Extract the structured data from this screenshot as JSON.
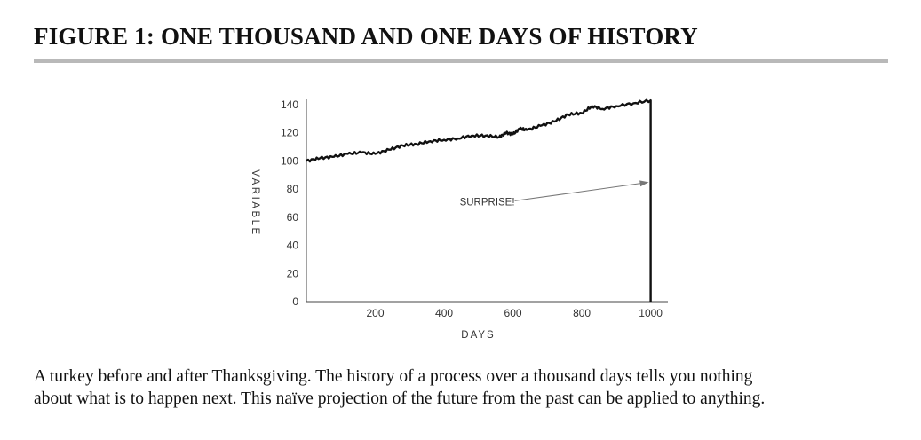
{
  "figure_title": "FIGURE 1: ONE THOUSAND AND ONE DAYS OF HISTORY",
  "caption_lines": [
    "A turkey before and after Thanksgiving. The history of a process over a thousand days tells you nothing",
    "about what is to happen next. This naïve projection of the future from the past can be applied to anything."
  ],
  "chart_data": {
    "type": "line",
    "xlabel": "DAYS",
    "ylabel": "VARIABLE",
    "xlim": [
      0,
      1050
    ],
    "ylim": [
      0,
      140
    ],
    "x_ticks": [
      200,
      400,
      600,
      800,
      1000
    ],
    "y_ticks": [
      0,
      20,
      40,
      60,
      80,
      100,
      120,
      140
    ],
    "grid": false,
    "annotation": {
      "text": "SURPRISE!",
      "x": 600,
      "y": 71,
      "arrow_to": [
        1000,
        84
      ]
    },
    "series": [
      {
        "x": [
          0,
          40,
          80,
          120,
          160,
          200,
          240,
          280,
          320,
          360,
          400,
          440,
          480,
          520,
          560,
          580,
          600,
          620,
          640,
          680,
          720,
          760,
          800,
          830,
          860,
          900,
          950,
          1000,
          1000
        ],
        "y": [
          100,
          102,
          103,
          105,
          106,
          105,
          108,
          111,
          112,
          114,
          115,
          116,
          118,
          118,
          117,
          120,
          119,
          123,
          122,
          125,
          128,
          133,
          134,
          139,
          137,
          139,
          141,
          143,
          0
        ]
      }
    ]
  }
}
